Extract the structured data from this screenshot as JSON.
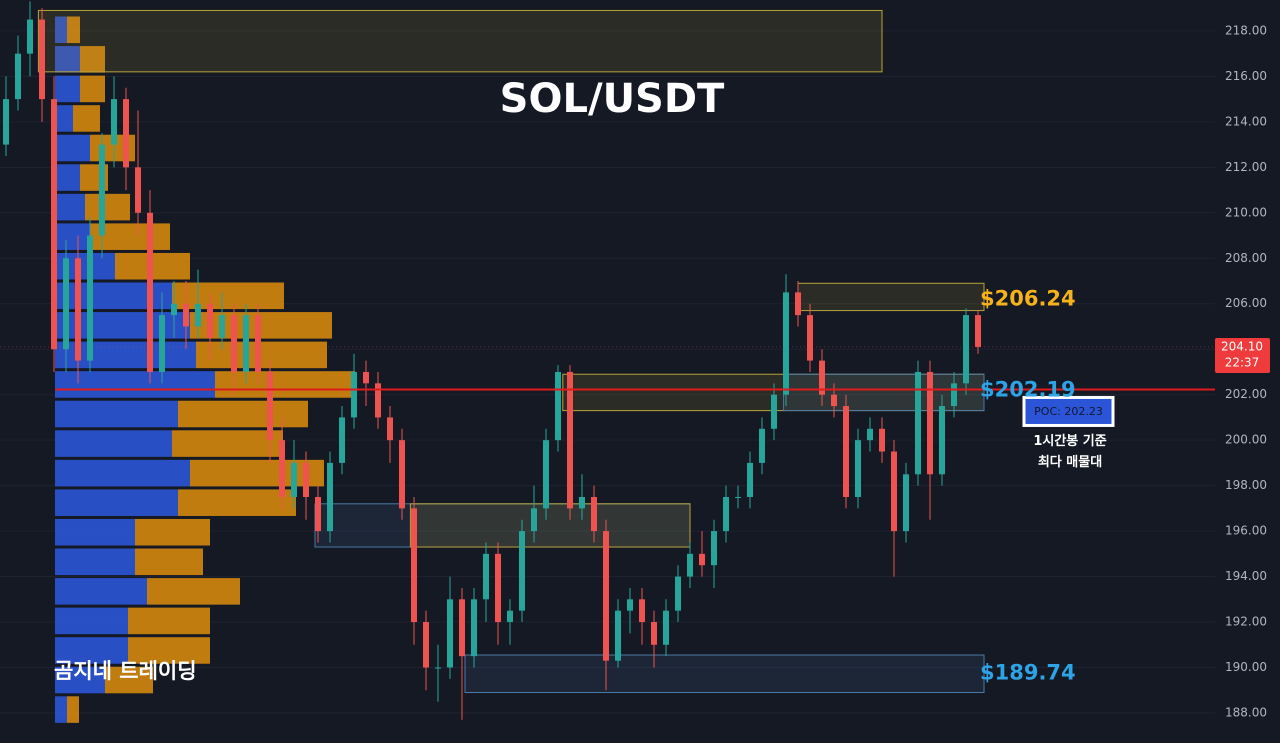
{
  "chart_data": {
    "type": "candlestick",
    "title": "SOL/USDT",
    "watermark": "곰지네 트레이딩",
    "ylim": [
      186.68,
      219.36
    ],
    "yticks": [
      {
        "value": 188,
        "label": "188.00"
      },
      {
        "value": 190,
        "label": "190.00"
      },
      {
        "value": 192,
        "label": "192.00"
      },
      {
        "value": 194,
        "label": "194.00"
      },
      {
        "value": 196,
        "label": "196.00"
      },
      {
        "value": 198,
        "label": "198.00"
      },
      {
        "value": 200,
        "label": "200.00"
      },
      {
        "value": 202,
        "label": "202.00"
      },
      {
        "value": 204,
        "label": "204.00"
      },
      {
        "value": 206,
        "label": "206.00"
      },
      {
        "value": 208,
        "label": "208.00"
      },
      {
        "value": 210,
        "label": "210.00"
      },
      {
        "value": 212,
        "label": "212.00"
      },
      {
        "value": 214,
        "label": "214.00"
      },
      {
        "value": 216,
        "label": "216.00"
      },
      {
        "value": 218,
        "label": "218.00"
      }
    ],
    "grid": true,
    "up_color": "#26a69a",
    "down_color": "#ef5350",
    "candles": [
      [
        213,
        216,
        212.5,
        215
      ],
      [
        215,
        217.8,
        214.5,
        217
      ],
      [
        217,
        219.3,
        216,
        218.5
      ],
      [
        218.5,
        219,
        214,
        215
      ],
      [
        215,
        216,
        203,
        204
      ],
      [
        204,
        208.8,
        203,
        208
      ],
      [
        208,
        209,
        202.5,
        203.5
      ],
      [
        203.5,
        209.8,
        203,
        209
      ],
      [
        209,
        213.5,
        208,
        213
      ],
      [
        213,
        216,
        212,
        215
      ],
      [
        215,
        215.5,
        211,
        212
      ],
      [
        212,
        214.5,
        209,
        210
      ],
      [
        210,
        211,
        202.5,
        203
      ],
      [
        203,
        206.5,
        202.5,
        205.5
      ],
      [
        205.5,
        207,
        204.5,
        206
      ],
      [
        206,
        207,
        204,
        205
      ],
      [
        205,
        207.5,
        204.5,
        206
      ],
      [
        206,
        206.5,
        203.5,
        204.5
      ],
      [
        204.5,
        206.5,
        204,
        205.5
      ],
      [
        205.5,
        206,
        202,
        203
      ],
      [
        203,
        206,
        202.5,
        205.5
      ],
      [
        205.5,
        206,
        202.5,
        203
      ],
      [
        203,
        203.5,
        199,
        200
      ],
      [
        200,
        201,
        197,
        197.5
      ],
      [
        197.5,
        200,
        197,
        199
      ],
      [
        199,
        199.5,
        196.5,
        197.5
      ],
      [
        197.5,
        198,
        195.5,
        196
      ],
      [
        196,
        199.5,
        195.5,
        199
      ],
      [
        199,
        201.5,
        198.5,
        201
      ],
      [
        201,
        203.8,
        200.5,
        203
      ],
      [
        203,
        203.5,
        201.5,
        202.5
      ],
      [
        202.5,
        203,
        200.5,
        201
      ],
      [
        201,
        201.5,
        199,
        200
      ],
      [
        200,
        200.5,
        196.5,
        197
      ],
      [
        197,
        197.5,
        191,
        192
      ],
      [
        192,
        192.5,
        189,
        190
      ],
      [
        190,
        191,
        188.5,
        190
      ],
      [
        190,
        194,
        189.5,
        193
      ],
      [
        193,
        193.5,
        187.7,
        190.5
      ],
      [
        190.5,
        193.5,
        190,
        193
      ],
      [
        193,
        195.5,
        192,
        195
      ],
      [
        195,
        195.5,
        191,
        192
      ],
      [
        192,
        193,
        191,
        192.5
      ],
      [
        192.5,
        196.5,
        192,
        196
      ],
      [
        196,
        198,
        195.5,
        197
      ],
      [
        197,
        200.5,
        196.5,
        200
      ],
      [
        200,
        203.3,
        199.5,
        203
      ],
      [
        203,
        203.3,
        196.5,
        197
      ],
      [
        197,
        198.5,
        196.5,
        197.5
      ],
      [
        197.5,
        198,
        195.5,
        196
      ],
      [
        196,
        196.5,
        189,
        190.3
      ],
      [
        190.3,
        193,
        190,
        192.5
      ],
      [
        192.5,
        193.5,
        191.5,
        193
      ],
      [
        193,
        193.5,
        191,
        192
      ],
      [
        192,
        192.5,
        190,
        191
      ],
      [
        191,
        193,
        190.5,
        192.5
      ],
      [
        192.5,
        194.5,
        192,
        194
      ],
      [
        194,
        195.5,
        193.5,
        195
      ],
      [
        195,
        196,
        194,
        194.5
      ],
      [
        194.5,
        196.5,
        193.5,
        196
      ],
      [
        196,
        198,
        195.5,
        197.5
      ],
      [
        197.5,
        198,
        197,
        197.5
      ],
      [
        197.5,
        199.5,
        197,
        199
      ],
      [
        199,
        201,
        198.5,
        200.5
      ],
      [
        200.5,
        202.5,
        200,
        202
      ],
      [
        202,
        207.3,
        201.5,
        206.5
      ],
      [
        206.5,
        207,
        205,
        205.5
      ],
      [
        205.5,
        206,
        203,
        203.5
      ],
      [
        203.5,
        204,
        201.5,
        202
      ],
      [
        202,
        202.5,
        201,
        201.5
      ],
      [
        201.5,
        202,
        197,
        197.5
      ],
      [
        197.5,
        200.5,
        197,
        200
      ],
      [
        200,
        201,
        199.5,
        200.5
      ],
      [
        200.5,
        201,
        199,
        199.5
      ],
      [
        199.5,
        200,
        194,
        196
      ],
      [
        196,
        199,
        195.5,
        198.5
      ],
      [
        198.5,
        203.5,
        198,
        203
      ],
      [
        203,
        203.5,
        196.5,
        198.5
      ],
      [
        198.5,
        202,
        198,
        201.5
      ],
      [
        201.5,
        203,
        201,
        202.5
      ],
      [
        202.5,
        205.8,
        202,
        205.5
      ],
      [
        205.5,
        205.7,
        203.8,
        204.1
      ]
    ],
    "volume_profile": {
      "buy_color": "#2b55d6",
      "sell_color": "#d4870e",
      "bins": [
        187.5,
        188.8,
        190.1,
        191.4,
        192.7,
        194.0,
        195.3,
        196.6,
        197.9,
        199.2,
        200.5,
        201.8,
        203.1,
        204.4,
        205.7,
        207.0,
        208.3,
        209.6,
        210.9,
        212.2,
        213.5,
        214.8,
        216.1,
        217.4,
        218.7
      ],
      "buy": [
        12,
        50,
        73,
        73,
        92,
        80,
        80,
        123,
        135,
        117,
        123,
        160,
        141,
        135,
        117,
        60,
        35,
        30,
        25,
        35,
        18,
        25,
        25,
        12
      ],
      "sell": [
        12,
        48,
        82,
        82,
        93,
        68,
        75,
        118,
        134,
        111,
        130,
        140,
        131,
        142,
        112,
        75,
        80,
        45,
        28,
        45,
        27,
        25,
        25,
        13
      ]
    },
    "zones": [
      {
        "low": 216.2,
        "high": 218.9,
        "from": 2.7,
        "to": 73,
        "color": "#b8a33a"
      },
      {
        "low": 205.7,
        "high": 206.9,
        "from": 66,
        "to": 81.5,
        "color": "#b8a33a"
      },
      {
        "low": 201.3,
        "high": 202.9,
        "from": 46.4,
        "to": 81.5,
        "color": "#b8a33a"
      },
      {
        "low": 201.3,
        "high": 202.9,
        "from": 64.8,
        "to": 81.5,
        "color": "#4a7aa8"
      },
      {
        "low": 195.3,
        "high": 197.2,
        "from": 25.75,
        "to": 57,
        "color": "#4a7aa8"
      },
      {
        "low": 195.3,
        "high": 197.2,
        "from": 33.7,
        "to": 57,
        "color": "#b8a33a"
      },
      {
        "low": 188.9,
        "high": 190.55,
        "from": 38.25,
        "to": 81.5,
        "color": "#4a7aa8"
      }
    ],
    "price_labels": [
      {
        "label": "$206.24",
        "value": 206.24,
        "color": "#f5b21b"
      },
      {
        "label": "$202.19",
        "value": 202.19,
        "color": "#2ea3e6"
      },
      {
        "label": "$189.74",
        "value": 189.74,
        "color": "#2ea3e6"
      }
    ],
    "poc": {
      "value": 202.23,
      "label": "POC: 202.23",
      "color": "#e01b1b"
    },
    "poc_note": [
      "1시간봉 기준",
      "최다 매물대"
    ],
    "last_price": {
      "value": 204.1,
      "label": "204.10"
    },
    "countdown": "22:37"
  }
}
